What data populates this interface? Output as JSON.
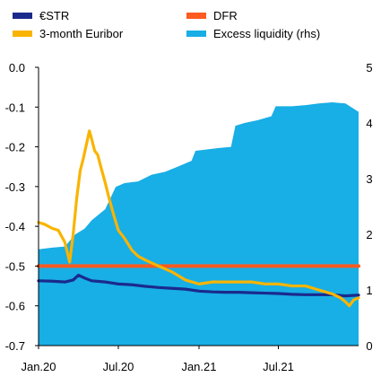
{
  "chart_data": {
    "type": "line",
    "title": "",
    "xlabel": "",
    "ylabel": "",
    "ylabel_right": "",
    "x_domain": [
      "2020-01-01",
      "2021-12-31"
    ],
    "ylim": [
      -0.7,
      0.0
    ],
    "ylim_right": [
      0,
      5
    ],
    "yticks": [
      "0.0",
      "-0.1",
      "-0.2",
      "-0.3",
      "-0.4",
      "-0.5",
      "-0.6",
      "-0.7"
    ],
    "yticks_right": [
      "5",
      "4",
      "3",
      "2",
      "1",
      "0"
    ],
    "xticks": [
      {
        "label": "Jan.20",
        "date": "2020-01-01"
      },
      {
        "label": "Jul.20",
        "date": "2020-07-01"
      },
      {
        "label": "Jan.21",
        "date": "2021-01-01"
      },
      {
        "label": "Jul.21",
        "date": "2021-07-01"
      }
    ],
    "legend": [
      {
        "label": "€STR",
        "color": "#1a2a8c"
      },
      {
        "label": "3-month Euribor",
        "color": "#f9b400"
      },
      {
        "label": "DFR",
        "color": "#ff5a1f"
      },
      {
        "label": "Excess liquidity (rhs)",
        "color": "#18aee6"
      }
    ],
    "series": [
      {
        "name": "Excess liquidity (rhs)",
        "type": "area",
        "axis": "right",
        "color": "#18aee6",
        "points": [
          [
            "2020-01-01",
            1.73
          ],
          [
            "2020-02-01",
            1.76
          ],
          [
            "2020-03-01",
            1.78
          ],
          [
            "2020-03-25",
            2.0
          ],
          [
            "2020-04-15",
            2.1
          ],
          [
            "2020-05-01",
            2.25
          ],
          [
            "2020-06-01",
            2.45
          ],
          [
            "2020-06-25",
            2.85
          ],
          [
            "2020-07-15",
            2.92
          ],
          [
            "2020-08-15",
            2.95
          ],
          [
            "2020-09-15",
            3.07
          ],
          [
            "2020-10-15",
            3.12
          ],
          [
            "2020-11-15",
            3.22
          ],
          [
            "2020-12-15",
            3.32
          ],
          [
            "2020-12-24",
            3.5
          ],
          [
            "2021-01-15",
            3.52
          ],
          [
            "2021-02-15",
            3.55
          ],
          [
            "2021-03-15",
            3.57
          ],
          [
            "2021-03-25",
            3.95
          ],
          [
            "2021-04-15",
            4.0
          ],
          [
            "2021-05-15",
            4.05
          ],
          [
            "2021-06-15",
            4.12
          ],
          [
            "2021-06-25",
            4.3
          ],
          [
            "2021-08-01",
            4.3
          ],
          [
            "2021-09-01",
            4.32
          ],
          [
            "2021-10-01",
            4.35
          ],
          [
            "2021-11-01",
            4.37
          ],
          [
            "2021-12-01",
            4.35
          ],
          [
            "2021-12-31",
            4.2
          ]
        ]
      },
      {
        "name": "DFR",
        "type": "line",
        "axis": "left",
        "color": "#ff5a1f",
        "points": [
          [
            "2020-01-01",
            -0.5
          ],
          [
            "2021-12-31",
            -0.5
          ]
        ]
      },
      {
        "name": "€STR",
        "type": "line",
        "axis": "left",
        "color": "#1a2a8c",
        "points": [
          [
            "2020-01-01",
            -0.537
          ],
          [
            "2020-02-01",
            -0.538
          ],
          [
            "2020-03-01",
            -0.54
          ],
          [
            "2020-03-20",
            -0.535
          ],
          [
            "2020-04-01",
            -0.523
          ],
          [
            "2020-04-15",
            -0.53
          ],
          [
            "2020-05-01",
            -0.537
          ],
          [
            "2020-06-01",
            -0.54
          ],
          [
            "2020-07-01",
            -0.545
          ],
          [
            "2020-08-01",
            -0.547
          ],
          [
            "2020-09-01",
            -0.551
          ],
          [
            "2020-10-01",
            -0.554
          ],
          [
            "2020-11-01",
            -0.556
          ],
          [
            "2020-12-01",
            -0.558
          ],
          [
            "2021-01-01",
            -0.563
          ],
          [
            "2021-02-01",
            -0.565
          ],
          [
            "2021-03-01",
            -0.566
          ],
          [
            "2021-04-01",
            -0.566
          ],
          [
            "2021-05-01",
            -0.567
          ],
          [
            "2021-06-01",
            -0.568
          ],
          [
            "2021-07-01",
            -0.569
          ],
          [
            "2021-08-01",
            -0.571
          ],
          [
            "2021-09-01",
            -0.572
          ],
          [
            "2021-10-01",
            -0.572
          ],
          [
            "2021-11-01",
            -0.572
          ],
          [
            "2021-12-01",
            -0.575
          ],
          [
            "2021-12-31",
            -0.573
          ]
        ]
      },
      {
        "name": "3-month Euribor",
        "type": "line",
        "axis": "left",
        "color": "#f9b400",
        "points": [
          [
            "2020-01-01",
            -0.39
          ],
          [
            "2020-01-15",
            -0.395
          ],
          [
            "2020-02-01",
            -0.405
          ],
          [
            "2020-02-15",
            -0.41
          ],
          [
            "2020-03-01",
            -0.44
          ],
          [
            "2020-03-12",
            -0.49
          ],
          [
            "2020-03-20",
            -0.42
          ],
          [
            "2020-03-28",
            -0.33
          ],
          [
            "2020-04-05",
            -0.26
          ],
          [
            "2020-04-12",
            -0.23
          ],
          [
            "2020-04-20",
            -0.19
          ],
          [
            "2020-04-26",
            -0.16
          ],
          [
            "2020-05-01",
            -0.18
          ],
          [
            "2020-05-08",
            -0.21
          ],
          [
            "2020-05-15",
            -0.22
          ],
          [
            "2020-05-22",
            -0.25
          ],
          [
            "2020-06-01",
            -0.29
          ],
          [
            "2020-06-10",
            -0.33
          ],
          [
            "2020-06-20",
            -0.37
          ],
          [
            "2020-07-01",
            -0.41
          ],
          [
            "2020-07-15",
            -0.43
          ],
          [
            "2020-08-01",
            -0.46
          ],
          [
            "2020-08-15",
            -0.475
          ],
          [
            "2020-09-01",
            -0.485
          ],
          [
            "2020-10-01",
            -0.5
          ],
          [
            "2020-11-01",
            -0.515
          ],
          [
            "2020-12-01",
            -0.535
          ],
          [
            "2021-01-01",
            -0.545
          ],
          [
            "2021-02-01",
            -0.54
          ],
          [
            "2021-03-01",
            -0.54
          ],
          [
            "2021-04-01",
            -0.54
          ],
          [
            "2021-05-01",
            -0.54
          ],
          [
            "2021-06-01",
            -0.545
          ],
          [
            "2021-07-01",
            -0.545
          ],
          [
            "2021-08-01",
            -0.55
          ],
          [
            "2021-09-01",
            -0.55
          ],
          [
            "2021-10-01",
            -0.56
          ],
          [
            "2021-11-01",
            -0.57
          ],
          [
            "2021-11-20",
            -0.58
          ],
          [
            "2021-12-01",
            -0.59
          ],
          [
            "2021-12-10",
            -0.6
          ],
          [
            "2021-12-20",
            -0.585
          ],
          [
            "2021-12-31",
            -0.58
          ]
        ]
      }
    ]
  }
}
